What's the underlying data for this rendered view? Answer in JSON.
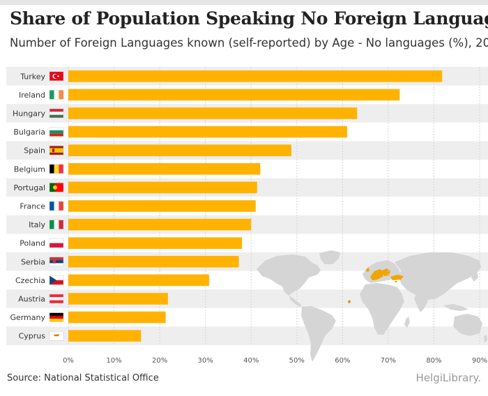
{
  "header": {
    "title": "Share of Population Speaking No Foreign Language",
    "subtitle": "Number of Foreign Languages known (self-reported) by Age - No languages (%), 20"
  },
  "footer": {
    "source": "Source: National Statistical Office",
    "brand": "HelgiLibrary."
  },
  "colors": {
    "bar": "#FFB300",
    "band": "#EEEEEE",
    "map": "#D5D5D5",
    "highlight": "#F0A500"
  },
  "chart_data": {
    "type": "bar",
    "orientation": "horizontal",
    "title": "Share of Population Speaking No Foreign Language",
    "subtitle": "Number of Foreign Languages known (self-reported) by Age - No languages (%), 20",
    "categories": [
      "Turkey",
      "Ireland",
      "Hungary",
      "Bulgaria",
      "Spain",
      "Belgium",
      "Portugal",
      "France",
      "Italy",
      "Poland",
      "Serbia",
      "Czechia",
      "Austria",
      "Germany",
      "Cyprus"
    ],
    "values": [
      81.8,
      72.5,
      63.2,
      61.0,
      48.8,
      42.0,
      41.3,
      41.0,
      40.0,
      38.0,
      37.3,
      30.8,
      21.8,
      21.3,
      15.9
    ],
    "xlim": [
      0,
      90
    ],
    "xticks": [
      "0%",
      "10%",
      "20%",
      "30%",
      "40%",
      "50%",
      "60%",
      "70%",
      "80%",
      "90%"
    ],
    "xlabel": "",
    "ylabel": ""
  }
}
